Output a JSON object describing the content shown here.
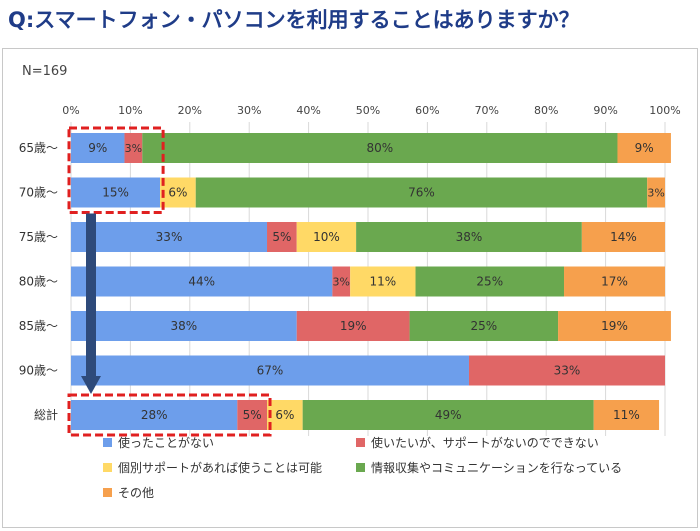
{
  "title": "Q:スマートフォン・パソコンを利用することはありますか？",
  "sample": "N=169",
  "chart_data": {
    "type": "bar",
    "orientation": "horizontal",
    "stacked": true,
    "percent_axis": true,
    "xlim": [
      0,
      100
    ],
    "x_ticks": [
      "0%",
      "10%",
      "20%",
      "30%",
      "40%",
      "50%",
      "60%",
      "70%",
      "80%",
      "90%",
      "100%"
    ],
    "grid": true,
    "legend_position": "bottom",
    "categories": [
      "65歳〜",
      "70歳〜",
      "75歳〜",
      "80歳〜",
      "85歳〜",
      "90歳〜",
      "総計"
    ],
    "series": [
      {
        "name": "使ったことがない",
        "color": "#6d9eeb",
        "values": [
          9,
          15,
          33,
          44,
          38,
          67,
          28
        ],
        "labels": [
          "9%",
          "15%",
          "33%",
          "44%",
          "38%",
          "67%",
          "28%"
        ]
      },
      {
        "name": "使いたいが、サポートがないのでできない",
        "color": "#e06666",
        "values": [
          3,
          0,
          5,
          3,
          19,
          33,
          5
        ],
        "labels": [
          "3%",
          "",
          "5%",
          "3%",
          "19%",
          "33%",
          "5%"
        ]
      },
      {
        "name": "個別サポートがあれば使うことは可能",
        "color": "#ffd966",
        "values": [
          0,
          6,
          10,
          11,
          0,
          0,
          6
        ],
        "labels": [
          "",
          "6%",
          "10%",
          "11%",
          "",
          "",
          "6%"
        ]
      },
      {
        "name": "情報収集やコミュニケーションを行なっている",
        "color": "#6aa84f",
        "values": [
          80,
          76,
          38,
          25,
          25,
          0,
          49
        ],
        "labels": [
          "80%",
          "76%",
          "38%",
          "25%",
          "25%",
          "",
          "49%"
        ]
      },
      {
        "name": "その他",
        "color": "#f6a04d",
        "values": [
          9,
          3,
          14,
          17,
          19,
          0,
          11
        ],
        "labels": [
          "9%",
          "3%",
          "14%",
          "17%",
          "19%",
          "",
          "11%"
        ]
      }
    ],
    "annotations": [
      {
        "type": "dashed-box",
        "color": "#e02020",
        "rows": [
          "65歳〜",
          "70歳〜"
        ],
        "series": "使ったことがない"
      },
      {
        "type": "dashed-box",
        "color": "#e02020",
        "rows": [
          "総計"
        ],
        "series": "使ったことがない"
      },
      {
        "type": "arrow",
        "color": "#2e4a7a",
        "from_row": "70歳〜",
        "to_row": "総計"
      }
    ]
  }
}
